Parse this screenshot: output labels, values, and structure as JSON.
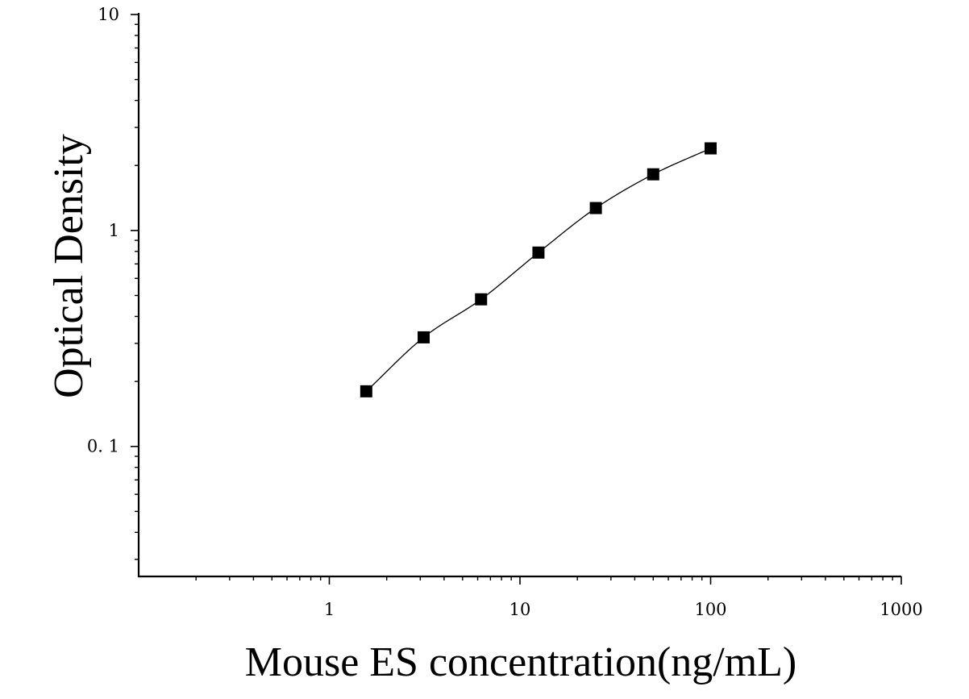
{
  "chart_data": {
    "type": "scatter",
    "xlabel": "Mouse ES concentration(ng/mL)",
    "ylabel": "Optical Density",
    "x_scale": "log",
    "y_scale": "log",
    "xlim": [
      0.1,
      1000
    ],
    "ylim": [
      0.025,
      10
    ],
    "x_ticks": [
      1,
      10,
      100,
      1000
    ],
    "x_tick_labels": [
      "1",
      "10",
      "100",
      "1000"
    ],
    "y_ticks": [
      0.1,
      1,
      10
    ],
    "y_tick_labels": [
      "0. 1",
      "1",
      "10"
    ],
    "grid": false,
    "points": {
      "x": [
        1.5625,
        3.125,
        6.25,
        12.5,
        25,
        50,
        100
      ],
      "y": [
        0.18,
        0.32,
        0.48,
        0.79,
        1.27,
        1.82,
        2.4
      ]
    },
    "fit_curve": true,
    "marker": "square",
    "color": "#000000"
  }
}
